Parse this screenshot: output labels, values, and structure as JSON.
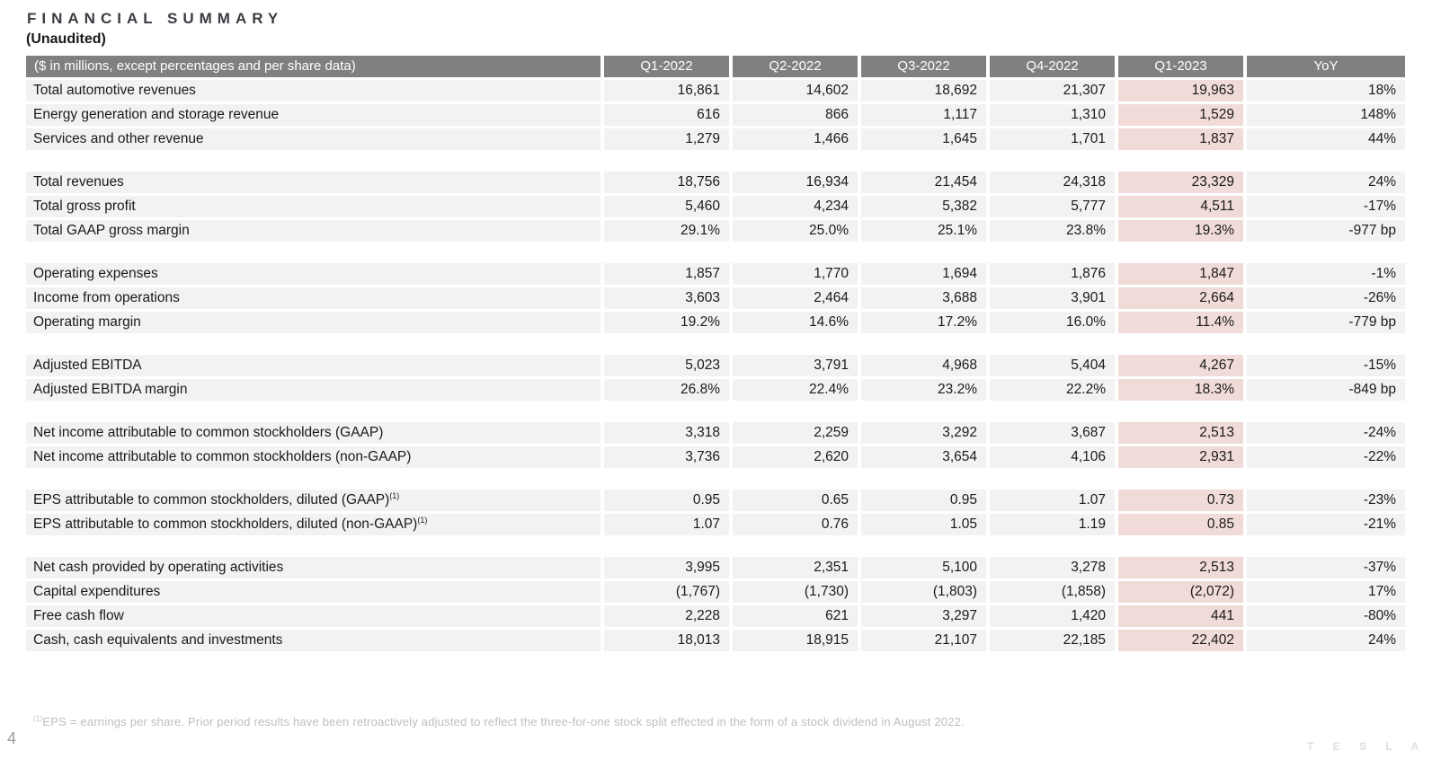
{
  "page": {
    "title": "FINANCIAL SUMMARY",
    "subtitle": "(Unaudited)",
    "page_number": "4",
    "brand": "T E S L A",
    "footnote_marker": "(1)",
    "footnote_text": "EPS = earnings per share. Prior period results have been retroactively adjusted to reflect the three-for-one stock split effected in the form of a stock dividend in August 2022."
  },
  "colors": {
    "header_bg": "#808080",
    "header_text": "#ffffff",
    "row_bg": "#f2f2f2",
    "highlight_bg": "#f0dbd8",
    "footnote_text": "#c0bebe"
  },
  "table": {
    "label_header": "($ in millions, except percentages and per share data)",
    "columns": [
      "Q1-2022",
      "Q2-2022",
      "Q3-2022",
      "Q4-2022",
      "Q1-2023",
      "YoY"
    ],
    "highlight_column": "Q1-2023",
    "highlight_column_index": 4,
    "groups": [
      {
        "rows": [
          {
            "label": "Total automotive revenues",
            "sup": "",
            "values": [
              "16,861",
              "14,602",
              "18,692",
              "21,307",
              "19,963",
              "18%"
            ]
          },
          {
            "label": "Energy generation and storage revenue",
            "sup": "",
            "values": [
              "616",
              "866",
              "1,117",
              "1,310",
              "1,529",
              "148%"
            ]
          },
          {
            "label": "Services and other revenue",
            "sup": "",
            "values": [
              "1,279",
              "1,466",
              "1,645",
              "1,701",
              "1,837",
              "44%"
            ]
          }
        ]
      },
      {
        "rows": [
          {
            "label": "Total revenues",
            "sup": "",
            "values": [
              "18,756",
              "16,934",
              "21,454",
              "24,318",
              "23,329",
              "24%"
            ]
          },
          {
            "label": "Total gross profit",
            "sup": "",
            "values": [
              "5,460",
              "4,234",
              "5,382",
              "5,777",
              "4,511",
              "-17%"
            ]
          },
          {
            "label": "Total GAAP gross margin",
            "sup": "",
            "values": [
              "29.1%",
              "25.0%",
              "25.1%",
              "23.8%",
              "19.3%",
              "-977 bp"
            ]
          }
        ]
      },
      {
        "rows": [
          {
            "label": "Operating expenses",
            "sup": "",
            "values": [
              "1,857",
              "1,770",
              "1,694",
              "1,876",
              "1,847",
              "-1%"
            ]
          },
          {
            "label": "Income from operations",
            "sup": "",
            "values": [
              "3,603",
              "2,464",
              "3,688",
              "3,901",
              "2,664",
              "-26%"
            ]
          },
          {
            "label": "Operating margin",
            "sup": "",
            "values": [
              "19.2%",
              "14.6%",
              "17.2%",
              "16.0%",
              "11.4%",
              "-779 bp"
            ]
          }
        ]
      },
      {
        "rows": [
          {
            "label": "Adjusted EBITDA",
            "sup": "",
            "values": [
              "5,023",
              "3,791",
              "4,968",
              "5,404",
              "4,267",
              "-15%"
            ]
          },
          {
            "label": "Adjusted EBITDA margin",
            "sup": "",
            "values": [
              "26.8%",
              "22.4%",
              "23.2%",
              "22.2%",
              "18.3%",
              "-849 bp"
            ]
          }
        ]
      },
      {
        "rows": [
          {
            "label": "Net income attributable to common stockholders (GAAP)",
            "sup": "",
            "values": [
              "3,318",
              "2,259",
              "3,292",
              "3,687",
              "2,513",
              "-24%"
            ]
          },
          {
            "label": "Net income attributable to common stockholders (non-GAAP)",
            "sup": "",
            "values": [
              "3,736",
              "2,620",
              "3,654",
              "4,106",
              "2,931",
              "-22%"
            ]
          }
        ]
      },
      {
        "rows": [
          {
            "label": "EPS attributable to common stockholders, diluted (GAAP)",
            "sup": "(1)",
            "values": [
              "0.95",
              "0.65",
              "0.95",
              "1.07",
              "0.73",
              "-23%"
            ]
          },
          {
            "label": "EPS attributable to common stockholders, diluted (non-GAAP)",
            "sup": "(1)",
            "values": [
              "1.07",
              "0.76",
              "1.05",
              "1.19",
              "0.85",
              "-21%"
            ]
          }
        ]
      },
      {
        "rows": [
          {
            "label": "Net cash provided by operating activities",
            "sup": "",
            "values": [
              "3,995",
              "2,351",
              "5,100",
              "3,278",
              "2,513",
              "-37%"
            ]
          },
          {
            "label": "Capital expenditures",
            "sup": "",
            "values": [
              "(1,767)",
              "(1,730)",
              "(1,803)",
              "(1,858)",
              "(2,072)",
              "17%"
            ]
          },
          {
            "label": "Free cash flow",
            "sup": "",
            "values": [
              "2,228",
              "621",
              "3,297",
              "1,420",
              "441",
              "-80%"
            ]
          },
          {
            "label": "Cash, cash equivalents and investments",
            "sup": "",
            "values": [
              "18,013",
              "18,915",
              "21,107",
              "22,185",
              "22,402",
              "24%"
            ]
          }
        ]
      }
    ]
  }
}
